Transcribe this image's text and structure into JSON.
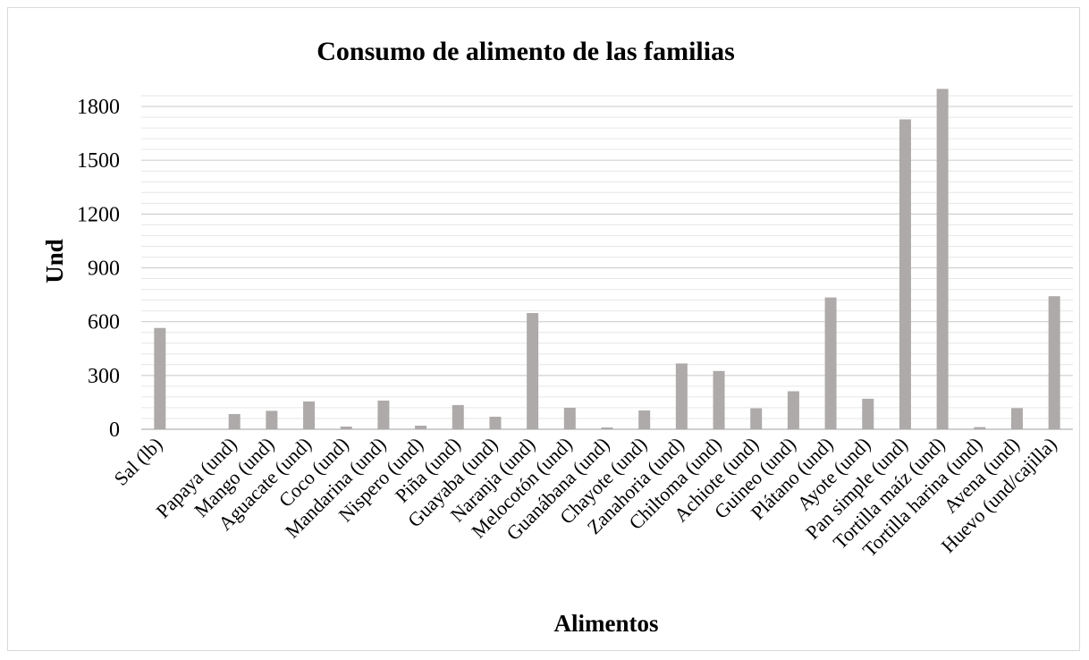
{
  "chart_data": {
    "type": "bar",
    "title": "Consumo de alimento de las familias",
    "xlabel": "Alimentos",
    "ylabel": "Und",
    "ylim": [
      0,
      1900
    ],
    "yticks": [
      0,
      300,
      600,
      900,
      1200,
      1500,
      1800
    ],
    "minor_grid_step": 60,
    "grid": true,
    "legend": "none",
    "bar_color": "#aeaaaa",
    "categories": [
      "Sal (lb)",
      "",
      "Papaya (und)",
      "Mango (und)",
      "Aguacate (und)",
      "Coco (und)",
      "Mandarina (und)",
      "Nispero (und)",
      "Piña (und)",
      "Guayaba (und)",
      "Naranja (und)",
      "Melocotón (und)",
      "Guanábana (und)",
      "Chayote (und)",
      "Zanahoria (und)",
      "Chiltoma (und)",
      "Achiote (und)",
      "Guineo (und)",
      "Plátano (und)",
      "Ayote (und)",
      "Pan simple (und)",
      "Tortilla maíz (und)",
      "Tortilla harina (und)",
      "Avena (und)",
      "Huevo (und/cajilla)"
    ],
    "values": [
      565,
      0,
      85,
      103,
      155,
      15,
      160,
      20,
      135,
      70,
      648,
      120,
      10,
      105,
      367,
      325,
      117,
      212,
      735,
      170,
      1728,
      1898,
      12,
      118,
      742
    ]
  }
}
